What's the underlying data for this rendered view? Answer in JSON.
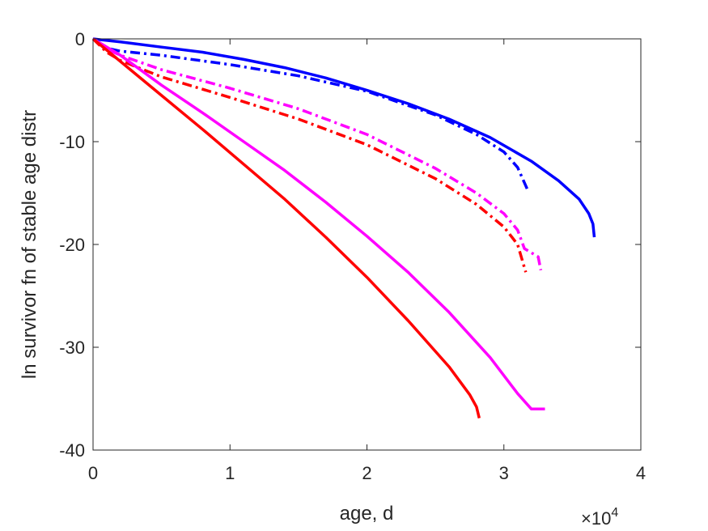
{
  "chart_data": {
    "type": "line",
    "xlabel": "age, d",
    "ylabel": "ln survivor fn of stable age distr",
    "xlim": [
      0,
      40000
    ],
    "ylim": [
      -40,
      0
    ],
    "x_ticks": [
      0,
      10000,
      20000,
      30000,
      40000
    ],
    "x_tick_labels": [
      "0",
      "1",
      "2",
      "3",
      "4"
    ],
    "x_exponent_label": "×10",
    "x_exponent_power": "4",
    "y_ticks": [
      0,
      -10,
      -20,
      -30,
      -40
    ],
    "y_tick_labels": [
      "0",
      "-10",
      "-20",
      "-30",
      "-40"
    ],
    "grid": false,
    "legend": "none",
    "series": [
      {
        "color": "#0000ff",
        "style": "solid",
        "x": [
          0,
          2000,
          5000,
          8000,
          11000,
          14000,
          17000,
          20000,
          23000,
          26000,
          29000,
          32000,
          34000,
          35500,
          36200,
          36500,
          36600
        ],
        "y": [
          0,
          -0.3,
          -0.8,
          -1.3,
          -2.0,
          -2.8,
          -3.8,
          -5.0,
          -6.3,
          -7.8,
          -9.6,
          -11.9,
          -13.8,
          -15.6,
          -17.0,
          -18.0,
          -19.3
        ]
      },
      {
        "color": "#0000ff",
        "style": "dashdot",
        "x": [
          0,
          1000,
          2000,
          5000,
          10000,
          15000,
          20000,
          25000,
          28000,
          30000,
          31000,
          31700
        ],
        "y": [
          0,
          -0.9,
          -1.2,
          -1.6,
          -2.5,
          -3.6,
          -5.1,
          -7.4,
          -9.3,
          -11.0,
          -12.5,
          -14.6
        ]
      },
      {
        "color": "#ff00ff",
        "style": "dashdot",
        "x": [
          0,
          1000,
          2000,
          5000,
          10000,
          15000,
          20000,
          25000,
          28000,
          30000,
          31000,
          31500,
          32000,
          32500,
          32700
        ],
        "y": [
          0,
          -1.0,
          -1.6,
          -3.0,
          -4.8,
          -6.8,
          -9.3,
          -12.6,
          -15.0,
          -17.0,
          -18.6,
          -20.4,
          -20.8,
          -21.2,
          -22.5
        ]
      },
      {
        "color": "#ff0000",
        "style": "dashdot",
        "x": [
          0,
          1000,
          2000,
          5000,
          10000,
          15000,
          20000,
          25000,
          28000,
          30000,
          31000,
          31600
        ],
        "y": [
          0,
          -1.3,
          -2.1,
          -3.7,
          -5.7,
          -7.8,
          -10.3,
          -13.6,
          -16.1,
          -18.3,
          -20.0,
          -22.7
        ]
      },
      {
        "color": "#ff00ff",
        "style": "solid",
        "x": [
          0,
          2000,
          5000,
          8000,
          11000,
          14000,
          17000,
          20000,
          23000,
          26000,
          29000,
          31000,
          32000,
          32500,
          33000
        ],
        "y": [
          0,
          -1.6,
          -4.5,
          -7.2,
          -10.0,
          -12.8,
          -15.9,
          -19.2,
          -22.7,
          -26.6,
          -31.0,
          -34.5,
          -36.0,
          -36.0,
          -36.0
        ]
      },
      {
        "color": "#ff0000",
        "style": "solid",
        "x": [
          0,
          2000,
          5000,
          8000,
          11000,
          14000,
          17000,
          20000,
          23000,
          26000,
          27500,
          28000,
          28200
        ],
        "y": [
          0,
          -2.2,
          -5.5,
          -8.8,
          -12.2,
          -15.6,
          -19.3,
          -23.2,
          -27.4,
          -31.9,
          -34.6,
          -35.8,
          -36.9
        ]
      }
    ]
  }
}
